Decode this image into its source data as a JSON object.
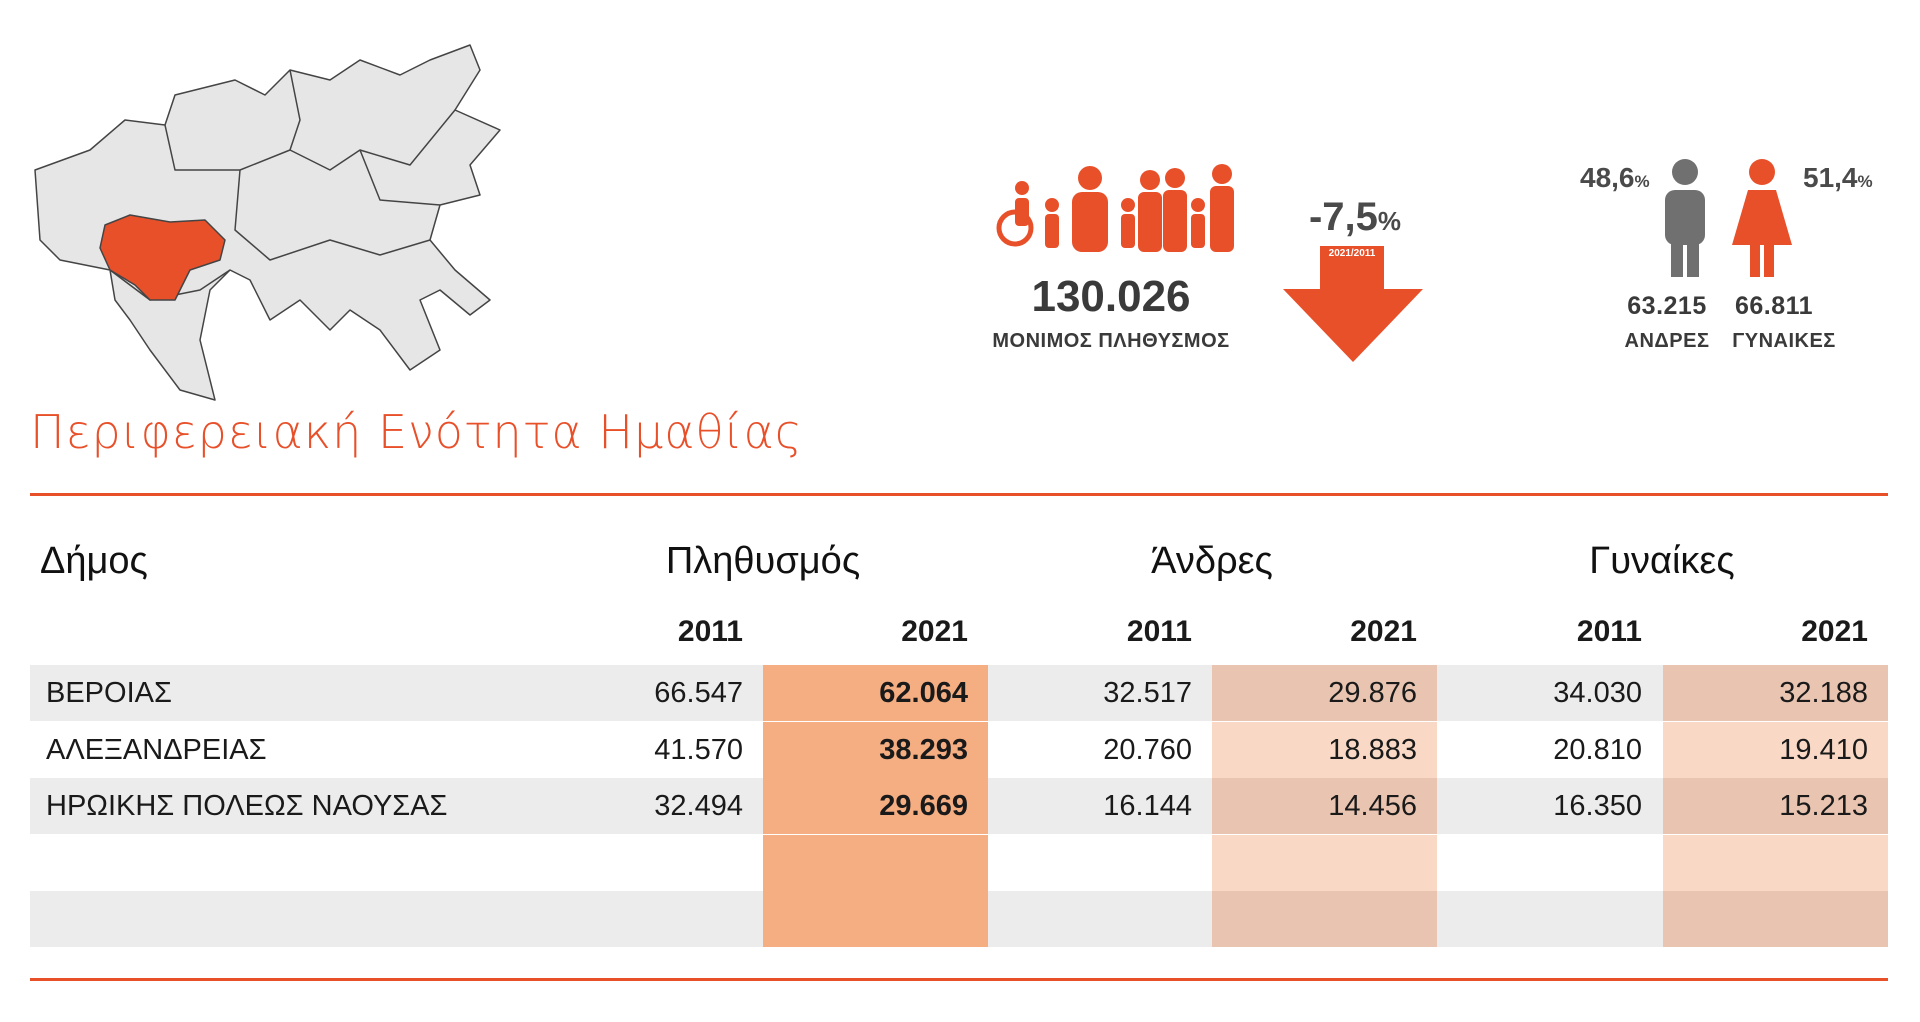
{
  "title": "Περιφερειακή Ενότητα Ημαθίας",
  "unit": "%",
  "population": {
    "value": "130.026",
    "label": "ΜΟΝΙΜΟΣ ΠΛΗΘΥΣΜΟΣ"
  },
  "change": {
    "value": "-7,5",
    "period": "2021/2011"
  },
  "men": {
    "percent": "48,6",
    "count": "63.215",
    "label": "ΑΝΔΡΕΣ"
  },
  "women": {
    "percent": "51,4",
    "count": "66.811",
    "label": "ΓΥΝΑΙΚΕΣ"
  },
  "table": {
    "headers": [
      "Δήμος",
      "Πληθυσμός",
      "Άνδρες",
      "Γυναίκες"
    ],
    "years": [
      "2011",
      "2021",
      "2011",
      "2021",
      "2011",
      "2021"
    ],
    "rows": [
      [
        "ΒΕΡΟΙΑΣ",
        "66.547",
        "62.064",
        "32.517",
        "29.876",
        "34.030",
        "32.188"
      ],
      [
        "ΑΛΕΞΑΝΔΡΕΙΑΣ",
        "41.570",
        "38.293",
        "20.760",
        "18.883",
        "20.810",
        "19.410"
      ],
      [
        "ΗΡΩΙΚΗΣ ΠΟΛΕΩΣ ΝΑΟΥΣΑΣ",
        "32.494",
        "29.669",
        "16.144",
        "14.456",
        "16.350",
        "15.213"
      ]
    ]
  }
}
